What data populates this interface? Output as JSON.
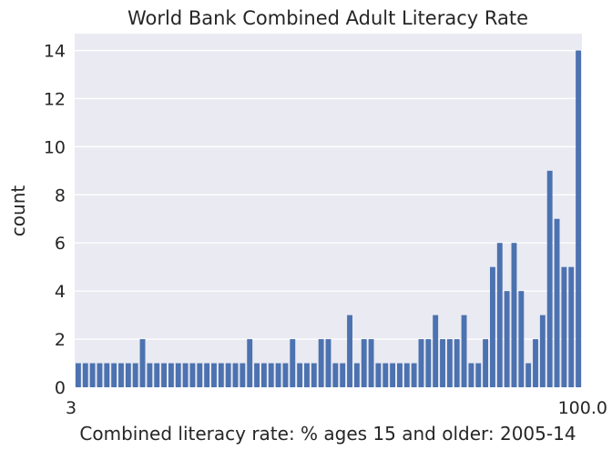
{
  "chart_data": {
    "type": "bar",
    "title": "World Bank Combined Adult Literacy Rate",
    "xlabel": "Combined literacy rate: % ages 15 and older: 2005-14",
    "ylabel": "count",
    "ylim": [
      0,
      14.7
    ],
    "yticks": [
      0,
      2,
      4,
      6,
      8,
      10,
      12,
      14
    ],
    "grid": true,
    "legend": "none",
    "x_tick_labels_overlapping": true,
    "x_tick_label_first": "3",
    "x_tick_label_last": "100.0",
    "bar_color": "#4c72b0",
    "plot_background": "#eaeaf2",
    "grid_color": "#ffffff",
    "values": [
      1,
      1,
      1,
      1,
      1,
      1,
      1,
      1,
      1,
      2,
      1,
      1,
      1,
      1,
      1,
      1,
      1,
      1,
      1,
      1,
      1,
      1,
      1,
      1,
      2,
      1,
      1,
      1,
      1,
      1,
      2,
      1,
      1,
      1,
      2,
      2,
      1,
      1,
      3,
      1,
      2,
      2,
      1,
      1,
      1,
      1,
      1,
      1,
      2,
      2,
      3,
      2,
      2,
      2,
      3,
      1,
      1,
      2,
      5,
      6,
      4,
      6,
      4,
      1,
      2,
      3,
      9,
      7,
      5,
      5,
      14
    ]
  }
}
